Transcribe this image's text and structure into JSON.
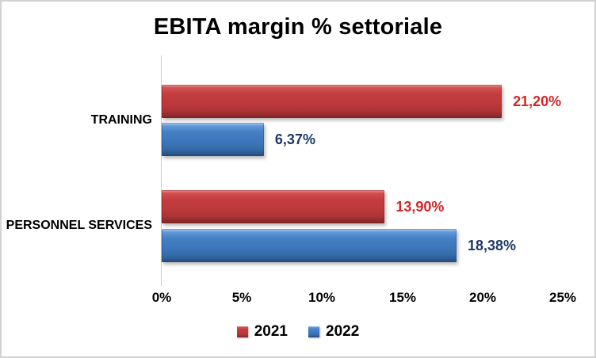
{
  "chart": {
    "title": "EBITA margin % settoriale",
    "background": "#ffffff",
    "frame_border_color": "#d2d2d2",
    "axis_line_color": "#c9c9c9"
  },
  "chart_data": {
    "type": "bar",
    "orientation": "horizontal",
    "title": "EBITA margin % settoriale",
    "categories": [
      "TRAINING",
      "PERSONNEL SERVICES"
    ],
    "series": [
      {
        "name": "2021",
        "values": [
          21.2,
          13.9
        ],
        "labels": [
          "21,20%",
          "13,90%"
        ],
        "color": "#c03a3c",
        "label_color": "#d02826"
      },
      {
        "name": "2022",
        "values": [
          6.37,
          18.38
        ],
        "labels": [
          "6,37%",
          "18,38%"
        ],
        "color": "#3d77bd",
        "label_color": "#1f3864"
      }
    ],
    "xlim": [
      0,
      25
    ],
    "x_ticks": [
      "0%",
      "5%",
      "10%",
      "15%",
      "20%",
      "25%"
    ],
    "grid": false,
    "legend_position": "bottom",
    "legend": [
      "2021",
      "2022"
    ]
  }
}
